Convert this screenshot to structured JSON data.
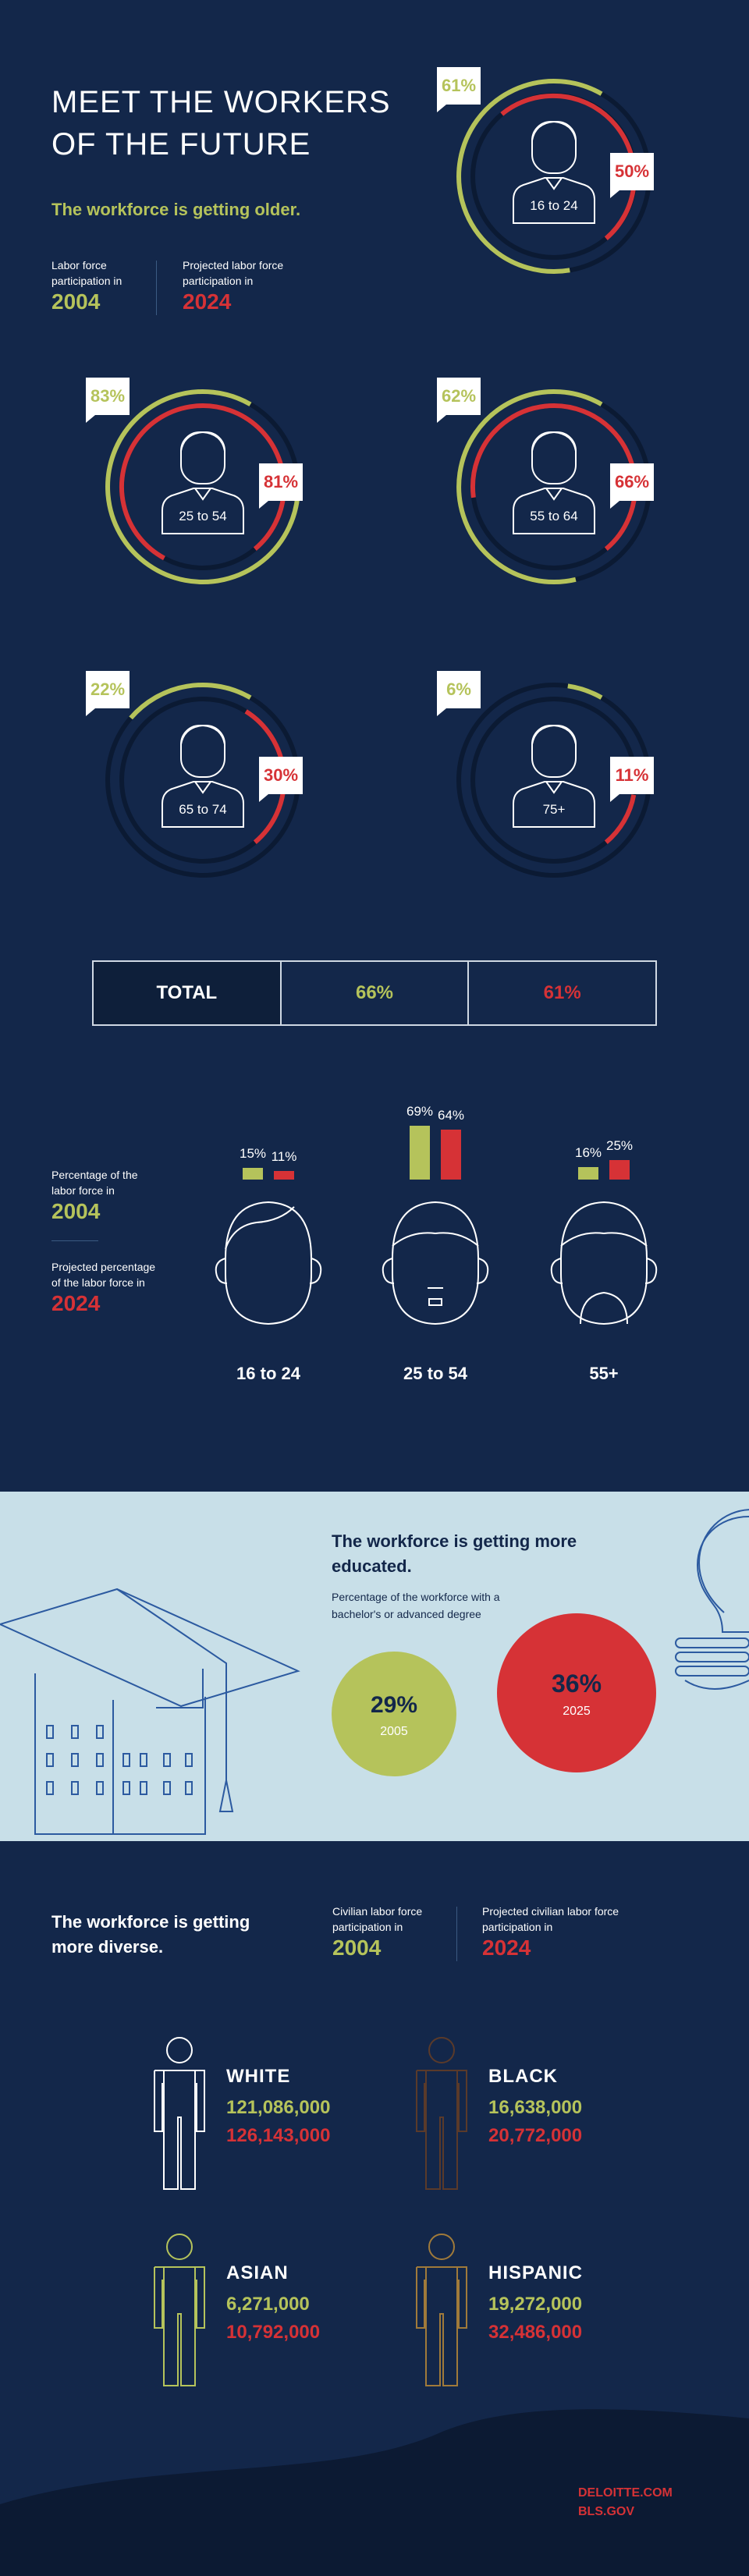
{
  "header": {
    "title_line1": "MEET THE WORKERS",
    "title_line2": "OF THE FUTURE",
    "subtitle": "The workforce is getting older.",
    "legend_2004_text": "Labor force participation in",
    "legend_2004_year": "2004",
    "legend_2024_text": "Projected labor force participation in",
    "legend_2024_year": "2024"
  },
  "colors": {
    "background": "#13274a",
    "green": "#b5c35b",
    "red": "#d63236",
    "light": "#c8dfe8"
  },
  "age_rings": [
    {
      "age": "16 to 24",
      "pct_2004": "61%",
      "pct_2024": "50%",
      "val_2004": 61,
      "val_2024": 50
    },
    {
      "age": "25 to 54",
      "pct_2004": "83%",
      "pct_2024": "81%",
      "val_2004": 83,
      "val_2024": 81
    },
    {
      "age": "55 to 64",
      "pct_2004": "62%",
      "pct_2024": "66%",
      "val_2004": 62,
      "val_2024": 66
    },
    {
      "age": "65 to 74",
      "pct_2004": "22%",
      "pct_2024": "30%",
      "val_2004": 22,
      "val_2024": 30
    },
    {
      "age": "75+",
      "pct_2004": "6%",
      "pct_2024": "11%",
      "val_2004": 6,
      "val_2024": 11
    }
  ],
  "total": {
    "label": "TOTAL",
    "val_2004": "66%",
    "val_2024": "61%"
  },
  "labor_share": {
    "legend_2004_text": "Percentage of the labor force in",
    "legend_2004_year": "2004",
    "legend_2024_text": "Projected percentage of the labor force in",
    "legend_2024_year": "2024",
    "groups": [
      {
        "label": "16 to 24",
        "v2004": 15,
        "v2024": 11,
        "l2004": "15%",
        "l2024": "11%"
      },
      {
        "label": "25 to 54",
        "v2004": 69,
        "v2024": 64,
        "l2004": "69%",
        "l2024": "64%"
      },
      {
        "label": "55+",
        "v2004": 16,
        "v2024": 25,
        "l2004": "16%",
        "l2024": "25%"
      }
    ]
  },
  "education": {
    "title": "The workforce is getting more educated.",
    "description": "Percentage of the workforce with a bachelor's or advanced degree",
    "c1_pct": "29%",
    "c1_year": "2005",
    "c2_pct": "36%",
    "c2_year": "2025"
  },
  "diversity": {
    "title": "The workforce is getting more diverse.",
    "legend_2004_text": "Civilian labor force participation in",
    "legend_2004_year": "2004",
    "legend_2024_text": "Projected civilian labor force participation in",
    "legend_2024_year": "2024",
    "groups": [
      {
        "label": "WHITE",
        "n2004": "121,086,000",
        "n2024": "126,143,000"
      },
      {
        "label": "BLACK",
        "n2004": "16,638,000",
        "n2024": "20,772,000"
      },
      {
        "label": "ASIAN",
        "n2004": "6,271,000",
        "n2024": "10,792,000"
      },
      {
        "label": "HISPANIC",
        "n2004": "19,272,000",
        "n2024": "32,486,000"
      }
    ]
  },
  "footer": {
    "source1": "DELOITTE.COM",
    "source2": "BLS.GOV"
  }
}
